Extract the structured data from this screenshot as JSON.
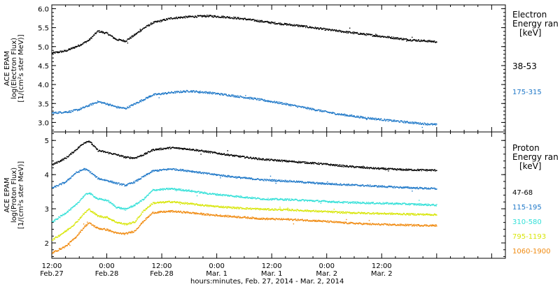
{
  "chart_data": [
    {
      "type": "scatter",
      "panel": "electron",
      "ylabel_lines": [
        "ACE EPAM",
        "log(Electron Flux)",
        "[1/(cm²s ster MeV)]"
      ],
      "ylim": [
        2.75,
        6.1
      ],
      "yticks": [
        "6.0",
        "5.5",
        "5.0",
        "4.5",
        "4.0",
        "3.5",
        "3.0"
      ],
      "ytick_values": [
        6.0,
        5.5,
        5.0,
        4.5,
        4.0,
        3.5,
        3.0
      ],
      "legend_title": [
        "Electron",
        "Energy ran",
        "[keV]"
      ],
      "series": [
        {
          "name": "38-53",
          "color": "#000000",
          "points": [
            [
              0,
              4.84
            ],
            [
              3,
              4.9
            ],
            [
              6,
              5.05
            ],
            [
              8,
              5.18
            ],
            [
              10,
              5.42
            ],
            [
              12,
              5.36
            ],
            [
              14,
              5.2
            ],
            [
              16,
              5.16
            ],
            [
              18,
              5.32
            ],
            [
              20,
              5.5
            ],
            [
              22,
              5.64
            ],
            [
              26,
              5.76
            ],
            [
              30,
              5.8
            ],
            [
              34,
              5.82
            ],
            [
              38,
              5.79
            ],
            [
              42,
              5.74
            ],
            [
              48,
              5.64
            ],
            [
              54,
              5.56
            ],
            [
              60,
              5.46
            ],
            [
              66,
              5.37
            ],
            [
              72,
              5.28
            ],
            [
              78,
              5.19
            ],
            [
              84,
              5.14
            ]
          ]
        },
        {
          "name": "175-315",
          "color": "#1f78c8",
          "points": [
            [
              0,
              3.26
            ],
            [
              4,
              3.3
            ],
            [
              6,
              3.36
            ],
            [
              8,
              3.46
            ],
            [
              10,
              3.56
            ],
            [
              12,
              3.5
            ],
            [
              14,
              3.42
            ],
            [
              16,
              3.38
            ],
            [
              18,
              3.5
            ],
            [
              20,
              3.62
            ],
            [
              22,
              3.74
            ],
            [
              26,
              3.8
            ],
            [
              30,
              3.84
            ],
            [
              34,
              3.8
            ],
            [
              38,
              3.74
            ],
            [
              44,
              3.64
            ],
            [
              50,
              3.52
            ],
            [
              56,
              3.38
            ],
            [
              62,
              3.24
            ],
            [
              68,
              3.14
            ],
            [
              74,
              3.06
            ],
            [
              80,
              2.99
            ],
            [
              84,
              2.95
            ]
          ]
        }
      ]
    },
    {
      "type": "scatter",
      "panel": "proton",
      "ylabel_lines": [
        "ACE EPAM",
        "log(Proton Flux)",
        "[1/(cm²s ster MeV)]"
      ],
      "ylim": [
        1.55,
        5.25
      ],
      "yticks": [
        "5",
        "4",
        "3",
        "2"
      ],
      "ytick_values": [
        5,
        4,
        3,
        2
      ],
      "legend_title": [
        "Proton",
        "Energy ran",
        "[keV]"
      ],
      "series": [
        {
          "name": "47-68",
          "color": "#000000",
          "points": [
            [
              0,
              4.3
            ],
            [
              3,
              4.5
            ],
            [
              5,
              4.72
            ],
            [
              7,
              4.95
            ],
            [
              8,
              5.0
            ],
            [
              10,
              4.72
            ],
            [
              12,
              4.66
            ],
            [
              14,
              4.6
            ],
            [
              16,
              4.52
            ],
            [
              18,
              4.5
            ],
            [
              20,
              4.6
            ],
            [
              22,
              4.74
            ],
            [
              26,
              4.8
            ],
            [
              30,
              4.76
            ],
            [
              34,
              4.68
            ],
            [
              40,
              4.56
            ],
            [
              46,
              4.46
            ],
            [
              52,
              4.4
            ],
            [
              58,
              4.34
            ],
            [
              64,
              4.26
            ],
            [
              70,
              4.2
            ],
            [
              76,
              4.16
            ],
            [
              84,
              4.14
            ]
          ]
        },
        {
          "name": "115-195",
          "color": "#1f78c8",
          "points": [
            [
              0,
              3.62
            ],
            [
              3,
              3.8
            ],
            [
              5,
              4.05
            ],
            [
              7,
              4.18
            ],
            [
              8,
              4.12
            ],
            [
              10,
              3.9
            ],
            [
              12,
              3.84
            ],
            [
              14,
              3.76
            ],
            [
              16,
              3.7
            ],
            [
              18,
              3.8
            ],
            [
              20,
              3.96
            ],
            [
              22,
              4.12
            ],
            [
              26,
              4.18
            ],
            [
              30,
              4.12
            ],
            [
              34,
              4.04
            ],
            [
              40,
              3.94
            ],
            [
              46,
              3.86
            ],
            [
              52,
              3.82
            ],
            [
              58,
              3.76
            ],
            [
              64,
              3.72
            ],
            [
              70,
              3.68
            ],
            [
              76,
              3.64
            ],
            [
              84,
              3.6
            ]
          ]
        },
        {
          "name": "310-580",
          "color": "#33e0d8",
          "points": [
            [
              0,
              2.62
            ],
            [
              3,
              2.9
            ],
            [
              5,
              3.1
            ],
            [
              7,
              3.4
            ],
            [
              8,
              3.48
            ],
            [
              10,
              3.3
            ],
            [
              12,
              3.26
            ],
            [
              14,
              3.06
            ],
            [
              16,
              3.0
            ],
            [
              18,
              3.12
            ],
            [
              20,
              3.3
            ],
            [
              22,
              3.56
            ],
            [
              26,
              3.6
            ],
            [
              30,
              3.54
            ],
            [
              34,
              3.46
            ],
            [
              40,
              3.38
            ],
            [
              46,
              3.3
            ],
            [
              52,
              3.28
            ],
            [
              58,
              3.24
            ],
            [
              64,
              3.2
            ],
            [
              70,
              3.18
            ],
            [
              76,
              3.16
            ],
            [
              84,
              3.12
            ]
          ]
        },
        {
          "name": "795-1193",
          "color": "#d8e60a",
          "points": [
            [
              0,
              2.1
            ],
            [
              3,
              2.36
            ],
            [
              5,
              2.58
            ],
            [
              7,
              2.88
            ],
            [
              8,
              3.0
            ],
            [
              10,
              2.8
            ],
            [
              12,
              2.76
            ],
            [
              14,
              2.62
            ],
            [
              16,
              2.56
            ],
            [
              18,
              2.62
            ],
            [
              20,
              2.96
            ],
            [
              22,
              3.18
            ],
            [
              26,
              3.22
            ],
            [
              30,
              3.16
            ],
            [
              34,
              3.1
            ],
            [
              40,
              3.04
            ],
            [
              46,
              3.0
            ],
            [
              52,
              2.98
            ],
            [
              58,
              2.94
            ],
            [
              64,
              2.9
            ],
            [
              70,
              2.88
            ],
            [
              76,
              2.86
            ],
            [
              84,
              2.84
            ]
          ]
        },
        {
          "name": "1060-1900",
          "color": "#f08a10",
          "points": [
            [
              0,
              1.72
            ],
            [
              3,
              1.92
            ],
            [
              5,
              2.16
            ],
            [
              7,
              2.48
            ],
            [
              8,
              2.6
            ],
            [
              10,
              2.44
            ],
            [
              12,
              2.4
            ],
            [
              14,
              2.3
            ],
            [
              16,
              2.28
            ],
            [
              18,
              2.36
            ],
            [
              20,
              2.66
            ],
            [
              22,
              2.9
            ],
            [
              26,
              2.94
            ],
            [
              30,
              2.9
            ],
            [
              34,
              2.84
            ],
            [
              40,
              2.78
            ],
            [
              46,
              2.72
            ],
            [
              52,
              2.7
            ],
            [
              58,
              2.66
            ],
            [
              64,
              2.6
            ],
            [
              70,
              2.56
            ],
            [
              76,
              2.54
            ],
            [
              84,
              2.52
            ]
          ]
        }
      ]
    }
  ],
  "x_axis": {
    "xlim": [
      0,
      99
    ],
    "ticks": [
      {
        "x": 0,
        "time": "12:00",
        "date": "Feb.27"
      },
      {
        "x": 12,
        "time": "0:00",
        "date": "Feb.28"
      },
      {
        "x": 24,
        "time": "12:00",
        "date": "Feb.28"
      },
      {
        "x": 36,
        "time": "0:00",
        "date": "Mar. 1"
      },
      {
        "x": 48,
        "time": "12:00",
        "date": "Mar. 1"
      },
      {
        "x": 60,
        "time": "0:00",
        "date": "Mar. 2"
      },
      {
        "x": 72,
        "time": "12:00",
        "date": "Mar. 2"
      }
    ],
    "label": "hours:minutes, Feb. 27, 2014 - Mar. 2, 2014"
  }
}
